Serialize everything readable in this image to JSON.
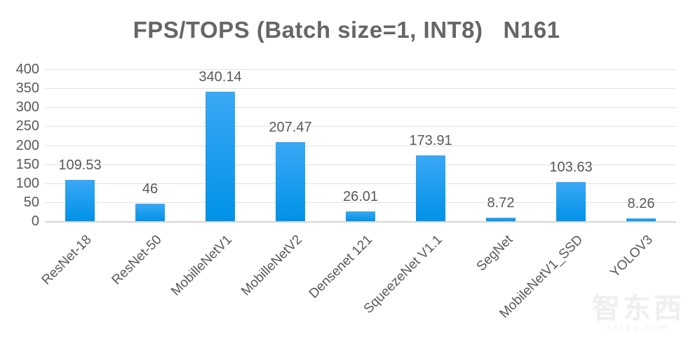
{
  "chart_data": {
    "type": "bar",
    "title": "FPS/TOPS (Batch size=1, INT8)   N161",
    "categories": [
      "ResNet-18",
      "ResNet-50",
      "MobilleNetV1",
      "MobilleNetV2",
      "Densenet 121",
      "SqueezeNet V1.1",
      "SegNet",
      "MobileNetV1_SSD",
      "YOLOV3"
    ],
    "values": [
      109.53,
      46,
      340.14,
      207.47,
      26.01,
      173.91,
      8.72,
      103.63,
      8.26
    ],
    "value_labels": [
      "109.53",
      "46",
      "340.14",
      "207.47",
      "26.01",
      "173.91",
      "8.72",
      "103.63",
      "8.26"
    ],
    "xlabel": "",
    "ylabel": "",
    "ylim": [
      0,
      400
    ],
    "yticks": [
      0,
      50,
      100,
      150,
      200,
      250,
      300,
      350,
      400
    ],
    "grid": true,
    "legend_position": "none",
    "bar_color_top": "#3BA8F5",
    "bar_color_bottom": "#0092E7",
    "gridline_color": "#e2e2e2",
    "baseline_color": "#d6d6d6",
    "text_color": "#595959",
    "title_color": "#666666"
  },
  "watermark": {
    "cn": "智东西",
    "en": "zhidx.com"
  }
}
